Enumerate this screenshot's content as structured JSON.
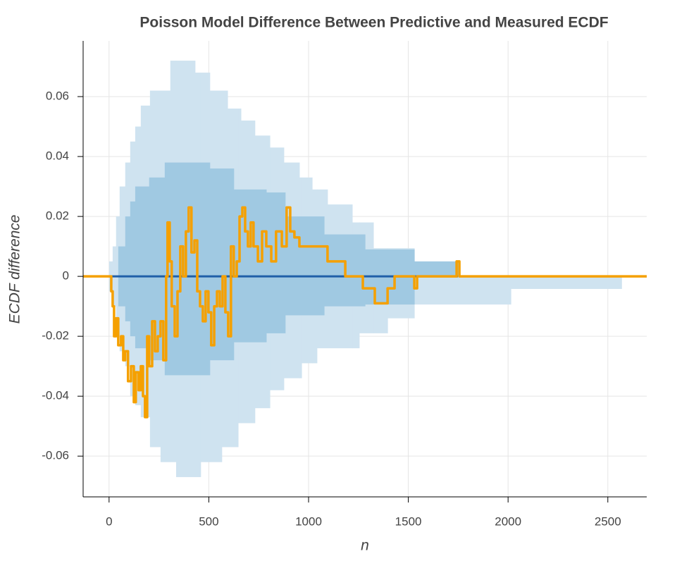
{
  "chart_data": {
    "type": "step-band",
    "title": "Poisson Model Difference Between Predictive and Measured ECDF",
    "x_label": "n",
    "y_label": "ECDF difference",
    "xlim": [
      -130,
      2695
    ],
    "ylim": [
      -0.0736,
      0.0786
    ],
    "xticks": [
      0,
      500,
      1000,
      1500,
      2000,
      2500
    ],
    "yticks": [
      -0.06,
      -0.04,
      -0.02,
      0,
      0.02,
      0.04,
      0.06
    ],
    "grid": true,
    "bands": [
      {
        "color": "#cfe3f0",
        "edges": [
          0,
          18,
          35,
          53,
          81,
          106,
          131,
          159,
          205,
          258,
          307,
          336,
          431,
          459,
          505,
          565,
          594,
          647,
          661,
          731,
          806,
          876,
          954,
          965,
          1018,
          1042,
          1095,
          1219,
          1254,
          1325,
          1396,
          1530,
          2014,
          2569
        ],
        "upper": [
          0.005,
          0.01,
          0.02,
          0.03,
          0.038,
          0.045,
          0.05,
          0.057,
          0.062,
          0.062,
          0.072,
          0.072,
          0.068,
          0.068,
          0.062,
          0.062,
          0.056,
          0.056,
          0.052,
          0.047,
          0.043,
          0.038,
          0.033,
          0.033,
          0.029,
          0.029,
          0.024,
          0.018,
          0.018,
          0.0094,
          0.0094,
          0,
          0
        ],
        "lower": [
          -0.005,
          -0.01,
          -0.02,
          -0.025,
          -0.03,
          -0.04,
          -0.043,
          -0.047,
          -0.057,
          -0.062,
          -0.062,
          -0.067,
          -0.067,
          -0.062,
          -0.062,
          -0.057,
          -0.057,
          -0.049,
          -0.049,
          -0.044,
          -0.038,
          -0.034,
          -0.034,
          -0.029,
          -0.029,
          -0.024,
          -0.024,
          -0.024,
          -0.019,
          -0.019,
          -0.014,
          -0.0094,
          -0.0042
        ]
      },
      {
        "color": "#a0c9e2",
        "edges": [
          46,
          81,
          106,
          131,
          201,
          279,
          505,
          625,
          788,
          883,
          1078,
          1283,
          1530,
          1749
        ],
        "upper": [
          0.01,
          0.02,
          0.025,
          0.03,
          0.033,
          0.038,
          0.036,
          0.029,
          0.028,
          0.02,
          0.014,
          0.009,
          0.005
        ],
        "lower": [
          -0.01,
          -0.015,
          -0.02,
          -0.024,
          -0.028,
          -0.033,
          -0.028,
          -0.022,
          -0.019,
          -0.013,
          -0.01,
          -0.0094,
          0
        ]
      }
    ],
    "series": [
      {
        "color": "#1f5fa8",
        "x": [
          0,
          1749
        ],
        "values": [
          0,
          0
        ]
      },
      {
        "color": "#f5a000",
        "x": [
          -130,
          11,
          18,
          25,
          35,
          46,
          60,
          71,
          81,
          95,
          110,
          124,
          134,
          148,
          159,
          170,
          180,
          191,
          201,
          216,
          230,
          244,
          258,
          272,
          286,
          293,
          304,
          314,
          329,
          343,
          357,
          371,
          385,
          399,
          413,
          428,
          442,
          456,
          470,
          484,
          498,
          512,
          527,
          541,
          555,
          569,
          583,
          597,
          611,
          625,
          640,
          654,
          668,
          682,
          696,
          710,
          724,
          746,
          767,
          788,
          813,
          837,
          866,
          890,
          908,
          929,
          954,
          1095,
          1155,
          1184,
          1272,
          1332,
          1396,
          1431,
          1530,
          1544,
          1742,
          1756,
          2695
        ],
        "values": [
          0,
          -0.005,
          -0.01,
          -0.02,
          -0.014,
          -0.023,
          -0.02,
          -0.028,
          -0.025,
          -0.035,
          -0.03,
          -0.042,
          -0.032,
          -0.038,
          -0.03,
          -0.04,
          -0.047,
          -0.02,
          -0.03,
          -0.015,
          -0.025,
          -0.02,
          -0.015,
          -0.028,
          0,
          0.018,
          0.005,
          -0.01,
          -0.02,
          -0.005,
          0.01,
          0,
          0.015,
          0.023,
          0.008,
          0.012,
          -0.005,
          -0.01,
          -0.015,
          -0.005,
          -0.012,
          -0.023,
          -0.01,
          -0.005,
          -0.01,
          0,
          -0.012,
          -0.02,
          0.01,
          0,
          0.005,
          0.02,
          0.023,
          0.015,
          0.01,
          0.018,
          0.01,
          0.005,
          0.015,
          0.01,
          0.005,
          0.015,
          0.01,
          0.023,
          0.015,
          0.013,
          0.01,
          0.005,
          0.005,
          0,
          -0.004,
          -0.009,
          -0.004,
          0,
          -0.004,
          0,
          0.005,
          0,
          0
        ]
      }
    ]
  }
}
